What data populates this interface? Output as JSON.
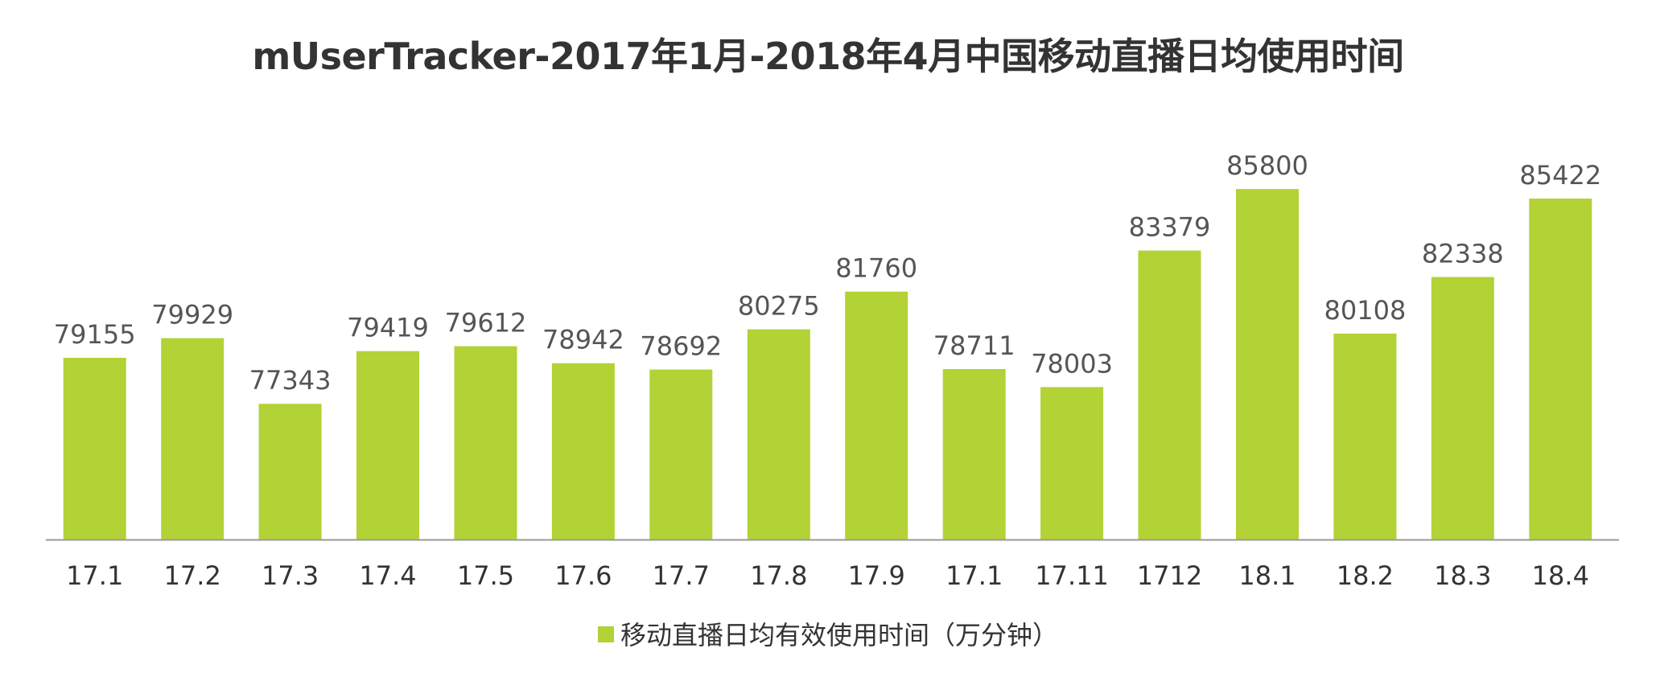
{
  "chart_data": {
    "type": "bar",
    "title": "mUserTracker-2017年1月-2018年4月中国移动直播日均使用时间",
    "categories": [
      "17.1",
      "17.2",
      "17.3",
      "17.4",
      "17.5",
      "17.6",
      "17.7",
      "17.8",
      "17.9",
      "17.1",
      "17.11",
      "1712",
      "18.1",
      "18.2",
      "18.3",
      "18.4"
    ],
    "series": [
      {
        "name": "移动直播日均有效使用时间（万分钟）",
        "values": [
          79155,
          79929,
          77343,
          79419,
          79612,
          78942,
          78692,
          80275,
          81760,
          78711,
          78003,
          83379,
          85800,
          80108,
          82338,
          85422
        ],
        "color": "#b2d235"
      }
    ],
    "legend": "bottom-center",
    "grid": false,
    "ylim": [
      72000,
      86500
    ],
    "data_labels": true,
    "colors": {
      "bar": "#b2d235",
      "axis": "#9a9a9a"
    }
  }
}
